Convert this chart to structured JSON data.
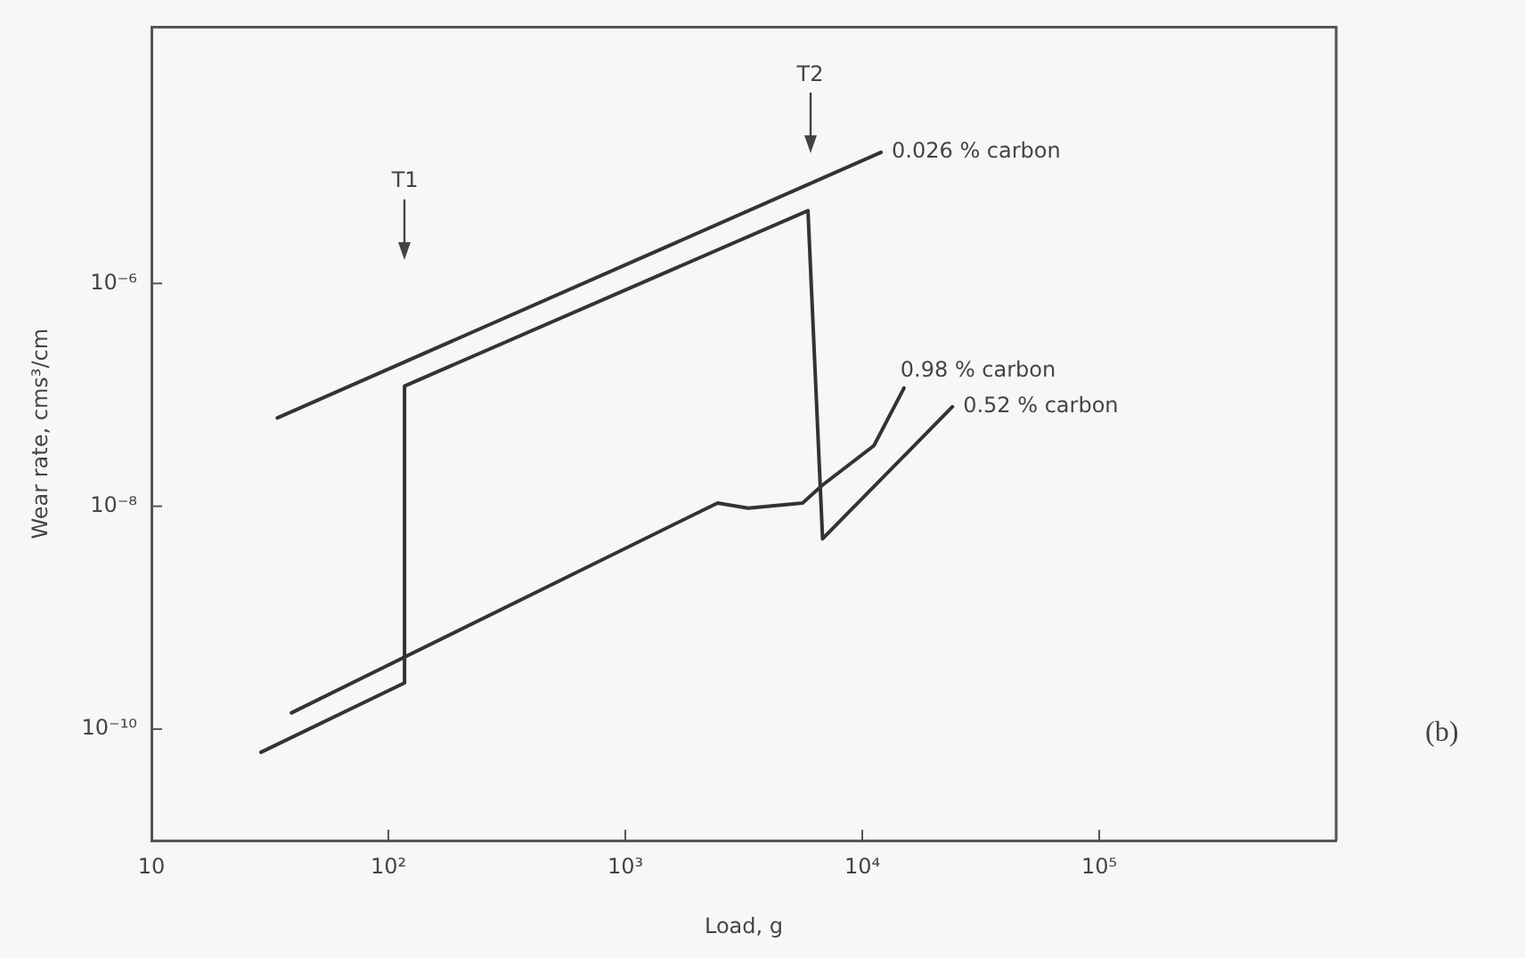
{
  "chart_data": {
    "type": "line",
    "xlabel": "Load, g",
    "ylabel": "Wear rate, cms³/cm",
    "log": "xy",
    "grid": false,
    "legend": false,
    "marker": "none",
    "line_style": "solid",
    "xlim": [
      10,
      1000000
    ],
    "xticks": [
      10,
      {
        "value": 100,
        "label": "10²"
      },
      {
        "value": 1000,
        "label": "10³"
      },
      {
        "value": 10000,
        "label": "10⁴"
      },
      {
        "value": 100000,
        "label": "10⁵"
      }
    ],
    "ylim": [
      1e-11,
      0.0002
    ],
    "yticks": [
      {
        "value": 1e-10,
        "label": "10⁻¹⁰"
      },
      {
        "value": 1e-08,
        "label": "10⁻⁸"
      },
      {
        "value": 1e-06,
        "label": "10⁻⁶"
      }
    ],
    "series": [
      {
        "name": "0.026 % carbon",
        "color": "#333333",
        "x": [
          34,
          12000
        ],
        "values": [
          6.2e-08,
          1.5e-05
        ]
      },
      {
        "name": "0.98 % carbon",
        "color": "#333333",
        "x": [
          39,
          2450,
          3300,
          5600,
          6800,
          11200,
          15000
        ],
        "values": [
          1.4e-10,
          1.07e-08,
          9.6e-09,
          1.07e-08,
          1.55e-08,
          3.5e-08,
          1.15e-07
        ]
      },
      {
        "name": "0.52 % carbon",
        "color": "#333333",
        "x": [
          29,
          117,
          117,
          5900,
          6800,
          24000
        ],
        "values": [
          6.2e-11,
          2.6e-10,
          1.2e-07,
          4.5e-06,
          5.1e-09,
          7.8e-08
        ]
      }
    ],
    "annotations": [
      "T1",
      "T2",
      "(b)"
    ]
  }
}
